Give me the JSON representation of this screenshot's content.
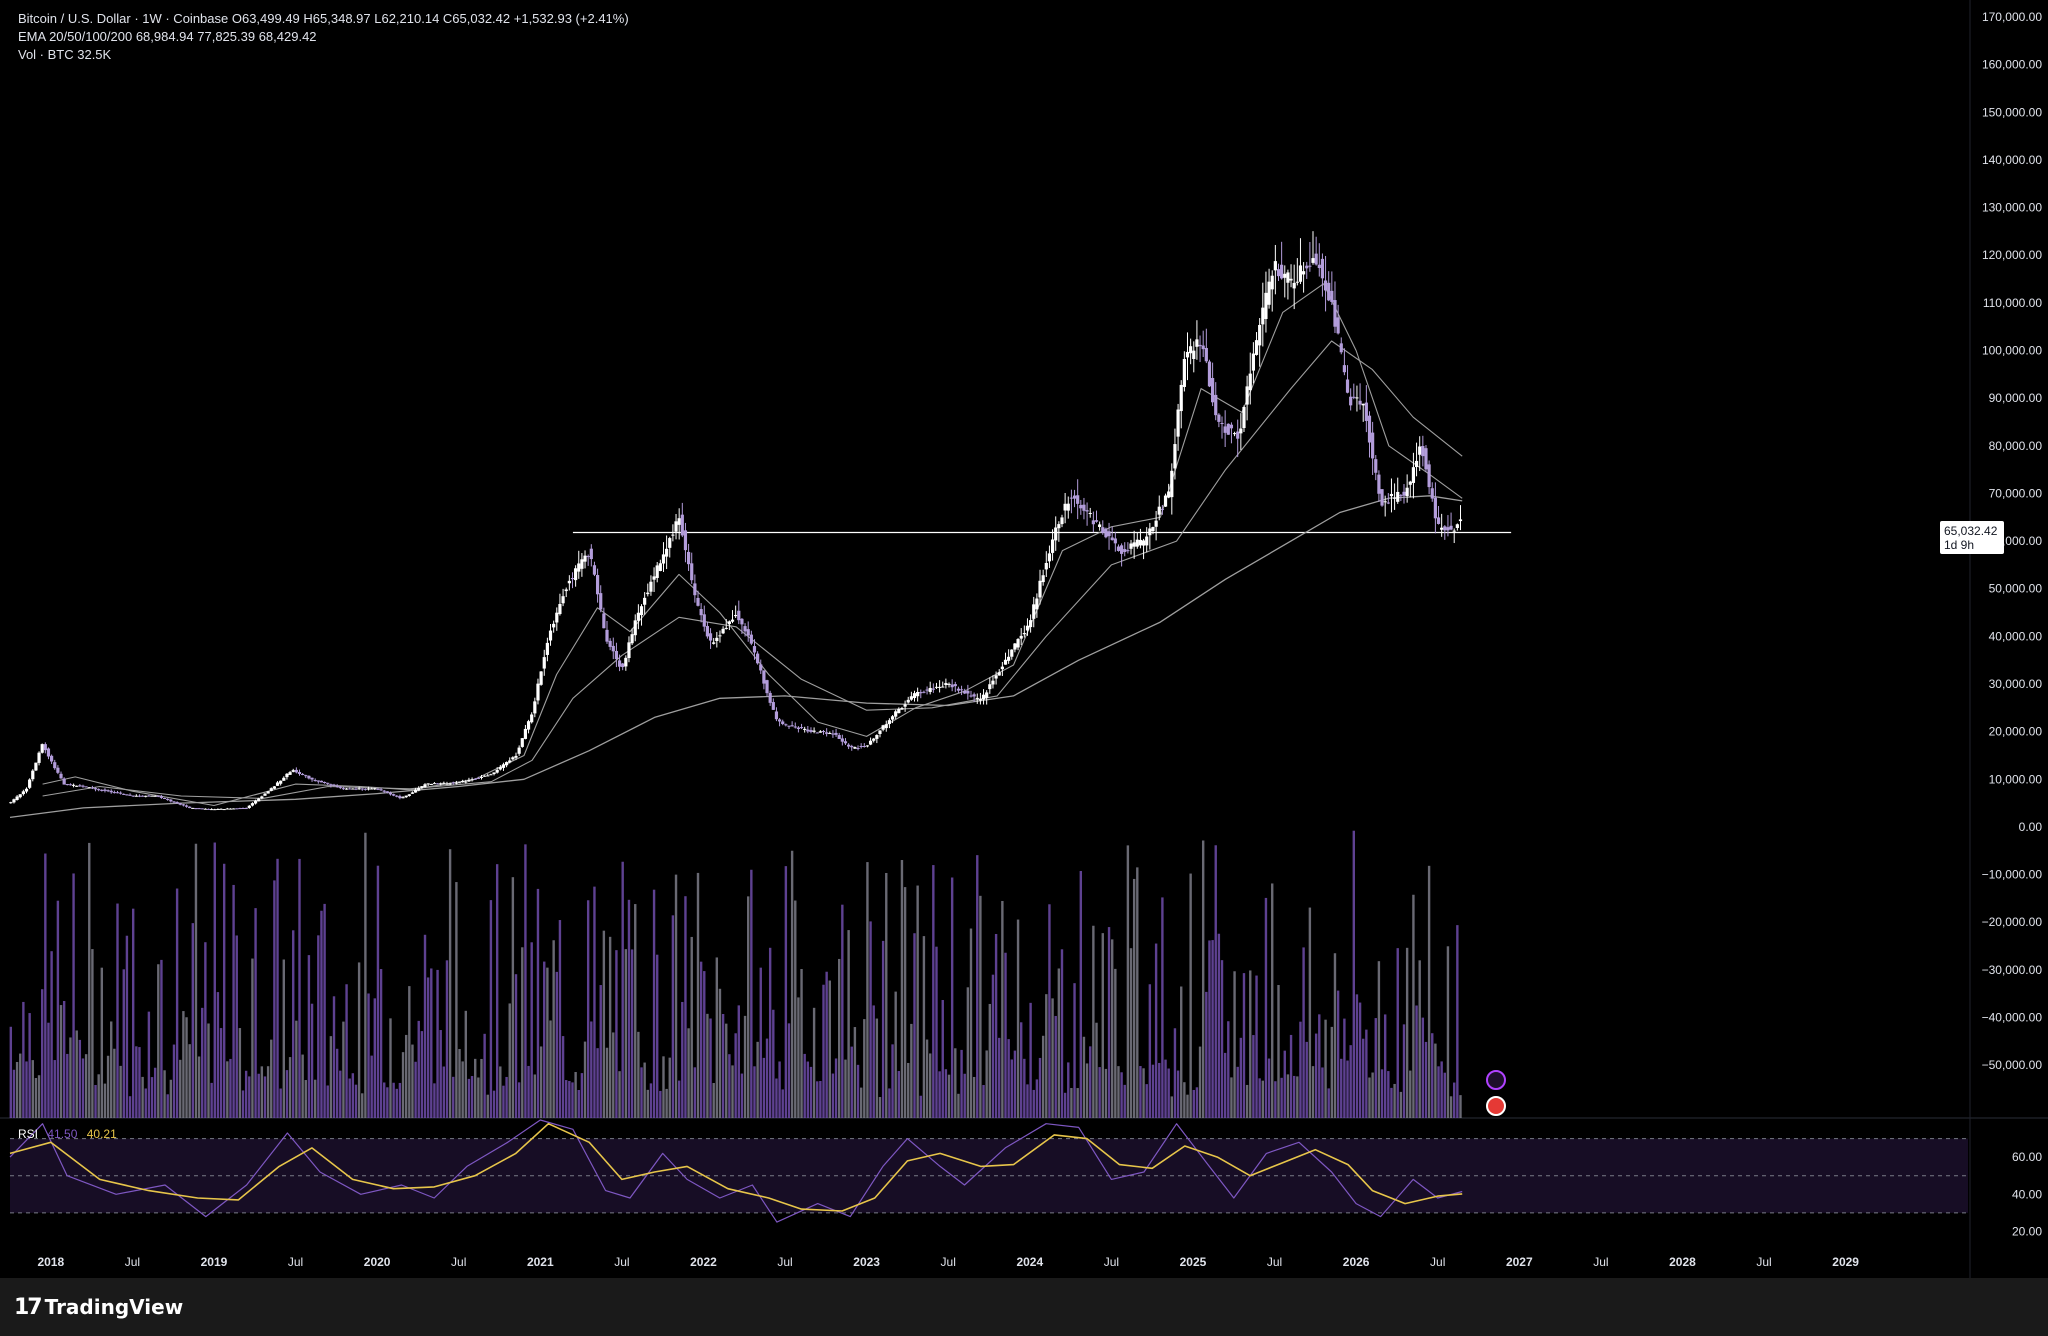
{
  "legend": {
    "line1": "Bitcoin / U.S. Dollar · 1W · Coinbase  O63,499.49  H65,348.97  L62,210.14  C65,032.42  +1,532.93 (+2.41%)",
    "line2": "EMA 20/50/100/200  68,984.94  77,825.39  68,429.42",
    "line3": "Vol · BTC  32.5K"
  },
  "price_tag": {
    "price": "65,032.42",
    "countdown": "1d 9h"
  },
  "rsi_legend": {
    "label": "RSI",
    "value1": "41.50",
    "value2": "40.21"
  },
  "footer": {
    "brand": "TradingView",
    "logo": "17"
  },
  "colors": {
    "background": "#000000",
    "candle": "#b39ddb",
    "candle_alt": "#ffffff",
    "ema": "#9e9e9e",
    "volume": "#7e57c2",
    "rsi": "#7e57c2",
    "rsi_ma": "#e7c54a",
    "axis_text": "#e0e3eb"
  },
  "chart_data": {
    "type": "candlestick",
    "symbol": "Bitcoin / U.S. Dollar",
    "interval": "1W",
    "exchange": "Coinbase",
    "ohlc_last": {
      "open": 63499.49,
      "high": 65348.97,
      "low": 62210.14,
      "close": 65032.42,
      "change": 1532.93,
      "change_pct": 2.41
    },
    "price_axis": {
      "ylim": [
        -55000,
        170000
      ],
      "ticks": [
        170000,
        160000,
        150000,
        140000,
        130000,
        120000,
        110000,
        100000,
        90000,
        80000,
        70000,
        60000,
        50000,
        40000,
        30000,
        20000,
        10000,
        0,
        -10000,
        -20000,
        -30000,
        -40000,
        -50000
      ],
      "tick_labels": [
        "170,000.00",
        "160,000.00",
        "150,000.00",
        "140,000.00",
        "130,000.00",
        "120,000.00",
        "110,000.00",
        "100,000.00",
        "90,000.00",
        "80,000.00",
        "70,000.00",
        "60,000.00",
        "50,000.00",
        "40,000.00",
        "30,000.00",
        "20,000.00",
        "10,000.00",
        "0.00",
        "−10,000.00",
        "−20,000.00",
        "−30,000.00",
        "−40,000.00",
        "−50,000.00"
      ]
    },
    "time_axis": {
      "xlim": [
        2017.75,
        2029.75
      ],
      "ticks": [
        2018.0,
        2018.5,
        2019.0,
        2019.5,
        2020.0,
        2020.5,
        2021.0,
        2021.5,
        2022.0,
        2022.5,
        2023.0,
        2023.5,
        2024.0,
        2024.5,
        2025.0,
        2025.5,
        2026.0,
        2026.5,
        2027.0,
        2027.5,
        2028.0,
        2028.5,
        2029.0
      ],
      "tick_labels": [
        "2018",
        "Jul",
        "2019",
        "Jul",
        "2020",
        "Jul",
        "2021",
        "Jul",
        "2022",
        "Jul",
        "2023",
        "Jul",
        "2024",
        "Jul",
        "2025",
        "Jul",
        "2026",
        "Jul",
        "2027",
        "Jul",
        "2028",
        "Jul",
        "2029"
      ]
    },
    "horizontal_line": {
      "price": 61800,
      "from": 2021.2,
      "to": 2026.95
    },
    "price_path": [
      [
        2017.75,
        5000
      ],
      [
        2017.85,
        8000
      ],
      [
        2017.95,
        17500
      ],
      [
        2018.0,
        14000
      ],
      [
        2018.08,
        9000
      ],
      [
        2018.2,
        8500
      ],
      [
        2018.35,
        7500
      ],
      [
        2018.5,
        6500
      ],
      [
        2018.65,
        6500
      ],
      [
        2018.85,
        4000
      ],
      [
        2019.0,
        3700
      ],
      [
        2019.2,
        4000
      ],
      [
        2019.35,
        8000
      ],
      [
        2019.48,
        12000
      ],
      [
        2019.6,
        10000
      ],
      [
        2019.8,
        8000
      ],
      [
        2020.0,
        8000
      ],
      [
        2020.15,
        6000
      ],
      [
        2020.3,
        9000
      ],
      [
        2020.5,
        9300
      ],
      [
        2020.7,
        11000
      ],
      [
        2020.85,
        15000
      ],
      [
        2020.95,
        24000
      ],
      [
        2021.05,
        40000
      ],
      [
        2021.15,
        50000
      ],
      [
        2021.3,
        58000
      ],
      [
        2021.4,
        40000
      ],
      [
        2021.5,
        33000
      ],
      [
        2021.6,
        45000
      ],
      [
        2021.75,
        57000
      ],
      [
        2021.85,
        65000
      ],
      [
        2021.95,
        48000
      ],
      [
        2022.05,
        38000
      ],
      [
        2022.2,
        45000
      ],
      [
        2022.3,
        38000
      ],
      [
        2022.45,
        22000
      ],
      [
        2022.6,
        20500
      ],
      [
        2022.8,
        19500
      ],
      [
        2022.9,
        16500
      ],
      [
        2023.0,
        17000
      ],
      [
        2023.15,
        23000
      ],
      [
        2023.3,
        28000
      ],
      [
        2023.5,
        30000
      ],
      [
        2023.7,
        26500
      ],
      [
        2023.85,
        35000
      ],
      [
        2024.0,
        43000
      ],
      [
        2024.15,
        62000
      ],
      [
        2024.25,
        70000
      ],
      [
        2024.4,
        64000
      ],
      [
        2024.55,
        58000
      ],
      [
        2024.7,
        60000
      ],
      [
        2024.85,
        70000
      ],
      [
        2024.95,
        98000
      ],
      [
        2025.05,
        102000
      ],
      [
        2025.15,
        85000
      ],
      [
        2025.28,
        82000
      ],
      [
        2025.4,
        104000
      ],
      [
        2025.5,
        118000
      ],
      [
        2025.6,
        114000
      ],
      [
        2025.75,
        120000
      ],
      [
        2025.85,
        110000
      ],
      [
        2025.95,
        90000
      ],
      [
        2026.05,
        88000
      ],
      [
        2026.15,
        68000
      ],
      [
        2026.3,
        70000
      ],
      [
        2026.4,
        80000
      ],
      [
        2026.5,
        63000
      ],
      [
        2026.6,
        62000
      ],
      [
        2026.65,
        65032
      ]
    ],
    "ema_20": [
      [
        2017.95,
        9000
      ],
      [
        2018.15,
        10500
      ],
      [
        2018.5,
        7500
      ],
      [
        2019.0,
        4500
      ],
      [
        2019.5,
        9000
      ],
      [
        2019.9,
        8500
      ],
      [
        2020.2,
        7800
      ],
      [
        2020.6,
        10000
      ],
      [
        2020.9,
        15000
      ],
      [
        2021.1,
        32000
      ],
      [
        2021.35,
        46000
      ],
      [
        2021.55,
        41000
      ],
      [
        2021.85,
        53000
      ],
      [
        2022.1,
        45000
      ],
      [
        2022.4,
        32000
      ],
      [
        2022.7,
        22000
      ],
      [
        2023.0,
        19000
      ],
      [
        2023.3,
        25000
      ],
      [
        2023.6,
        28500
      ],
      [
        2023.9,
        34000
      ],
      [
        2024.2,
        58000
      ],
      [
        2024.5,
        63000
      ],
      [
        2024.8,
        65000
      ],
      [
        2025.05,
        92000
      ],
      [
        2025.3,
        87000
      ],
      [
        2025.55,
        108000
      ],
      [
        2025.8,
        114000
      ],
      [
        2026.0,
        100000
      ],
      [
        2026.2,
        80000
      ],
      [
        2026.45,
        74000
      ],
      [
        2026.65,
        68985
      ]
    ],
    "ema_50": [
      [
        2017.95,
        6500
      ],
      [
        2018.3,
        8500
      ],
      [
        2018.8,
        6500
      ],
      [
        2019.3,
        6000
      ],
      [
        2019.7,
        8500
      ],
      [
        2020.2,
        8000
      ],
      [
        2020.7,
        9500
      ],
      [
        2020.95,
        14000
      ],
      [
        2021.2,
        27000
      ],
      [
        2021.5,
        36000
      ],
      [
        2021.85,
        44000
      ],
      [
        2022.2,
        42000
      ],
      [
        2022.6,
        31000
      ],
      [
        2023.0,
        24500
      ],
      [
        2023.4,
        25000
      ],
      [
        2023.8,
        27500
      ],
      [
        2024.1,
        40000
      ],
      [
        2024.5,
        55000
      ],
      [
        2024.9,
        60000
      ],
      [
        2025.2,
        75000
      ],
      [
        2025.6,
        92000
      ],
      [
        2025.85,
        102000
      ],
      [
        2026.1,
        96000
      ],
      [
        2026.35,
        86000
      ],
      [
        2026.65,
        77825
      ]
    ],
    "ema_200": [
      [
        2017.75,
        2000
      ],
      [
        2018.2,
        4000
      ],
      [
        2018.8,
        5000
      ],
      [
        2019.5,
        5800
      ],
      [
        2020.0,
        7000
      ],
      [
        2020.5,
        8500
      ],
      [
        2020.9,
        10000
      ],
      [
        2021.3,
        16000
      ],
      [
        2021.7,
        23000
      ],
      [
        2022.1,
        27000
      ],
      [
        2022.5,
        27500
      ],
      [
        2023.0,
        26000
      ],
      [
        2023.5,
        25500
      ],
      [
        2023.9,
        27500
      ],
      [
        2024.3,
        35000
      ],
      [
        2024.8,
        43000
      ],
      [
        2025.2,
        52000
      ],
      [
        2025.6,
        60000
      ],
      [
        2025.9,
        66000
      ],
      [
        2026.2,
        69000
      ],
      [
        2026.45,
        69500
      ],
      [
        2026.65,
        68429
      ]
    ],
    "volume": {
      "label": "Vol · BTC",
      "last": "32.5K"
    },
    "rsi": {
      "label": "RSI",
      "value": 41.5,
      "ma": 40.21,
      "levels": [
        70,
        50,
        30
      ],
      "axis_ticks": [
        60,
        40,
        20
      ],
      "axis_labels": [
        "60.00",
        "40.00",
        "20.00"
      ],
      "ylim": [
        10,
        80
      ],
      "path": [
        [
          2017.75,
          60
        ],
        [
          2017.95,
          78
        ],
        [
          2018.1,
          50
        ],
        [
          2018.4,
          40
        ],
        [
          2018.7,
          45
        ],
        [
          2018.95,
          28
        ],
        [
          2019.2,
          45
        ],
        [
          2019.45,
          73
        ],
        [
          2019.65,
          52
        ],
        [
          2019.9,
          40
        ],
        [
          2020.15,
          45
        ],
        [
          2020.35,
          38
        ],
        [
          2020.55,
          55
        ],
        [
          2020.8,
          68
        ],
        [
          2021.0,
          80
        ],
        [
          2021.2,
          75
        ],
        [
          2021.4,
          42
        ],
        [
          2021.55,
          38
        ],
        [
          2021.75,
          62
        ],
        [
          2021.9,
          48
        ],
        [
          2022.1,
          38
        ],
        [
          2022.3,
          45
        ],
        [
          2022.45,
          25
        ],
        [
          2022.7,
          35
        ],
        [
          2022.9,
          28
        ],
        [
          2023.1,
          55
        ],
        [
          2023.25,
          70
        ],
        [
          2023.45,
          55
        ],
        [
          2023.6,
          45
        ],
        [
          2023.85,
          65
        ],
        [
          2024.1,
          78
        ],
        [
          2024.3,
          76
        ],
        [
          2024.5,
          48
        ],
        [
          2024.7,
          52
        ],
        [
          2024.9,
          78
        ],
        [
          2025.1,
          55
        ],
        [
          2025.25,
          38
        ],
        [
          2025.45,
          62
        ],
        [
          2025.65,
          68
        ],
        [
          2025.85,
          52
        ],
        [
          2026.0,
          35
        ],
        [
          2026.15,
          28
        ],
        [
          2026.35,
          48
        ],
        [
          2026.5,
          38
        ],
        [
          2026.65,
          41.5
        ]
      ],
      "ma_path": [
        [
          2017.75,
          62
        ],
        [
          2018.0,
          68
        ],
        [
          2018.3,
          48
        ],
        [
          2018.6,
          42
        ],
        [
          2018.9,
          38
        ],
        [
          2019.15,
          37
        ],
        [
          2019.4,
          55
        ],
        [
          2019.6,
          65
        ],
        [
          2019.85,
          48
        ],
        [
          2020.1,
          43
        ],
        [
          2020.35,
          44
        ],
        [
          2020.6,
          50
        ],
        [
          2020.85,
          62
        ],
        [
          2021.05,
          78
        ],
        [
          2021.3,
          68
        ],
        [
          2021.5,
          48
        ],
        [
          2021.7,
          52
        ],
        [
          2021.9,
          55
        ],
        [
          2022.15,
          43
        ],
        [
          2022.4,
          38
        ],
        [
          2022.6,
          32
        ],
        [
          2022.85,
          31
        ],
        [
          2023.05,
          38
        ],
        [
          2023.25,
          58
        ],
        [
          2023.45,
          62
        ],
        [
          2023.7,
          55
        ],
        [
          2023.9,
          56
        ],
        [
          2024.15,
          72
        ],
        [
          2024.35,
          70
        ],
        [
          2024.55,
          56
        ],
        [
          2024.75,
          54
        ],
        [
          2024.95,
          66
        ],
        [
          2025.15,
          60
        ],
        [
          2025.35,
          50
        ],
        [
          2025.55,
          57
        ],
        [
          2025.75,
          64
        ],
        [
          2025.95,
          56
        ],
        [
          2026.1,
          42
        ],
        [
          2026.3,
          35
        ],
        [
          2026.5,
          39
        ],
        [
          2026.65,
          40.2
        ]
      ]
    }
  }
}
